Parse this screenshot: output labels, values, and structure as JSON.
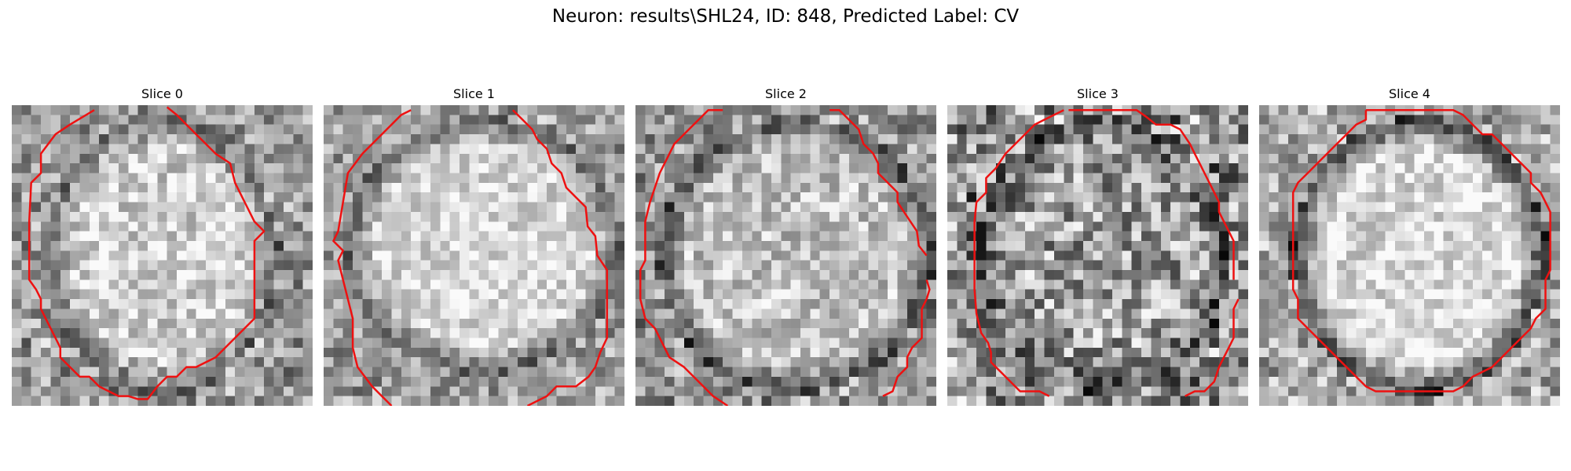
{
  "figure": {
    "title": "Neuron: results\\SHL24, ID: 848, Predicted Label: CV"
  },
  "contour_color": "#ee1111",
  "slices": [
    {
      "label": "Slice 0"
    },
    {
      "label": "Slice 1"
    },
    {
      "label": "Slice 2"
    },
    {
      "label": "Slice 3"
    },
    {
      "label": "Slice 4"
    }
  ]
}
